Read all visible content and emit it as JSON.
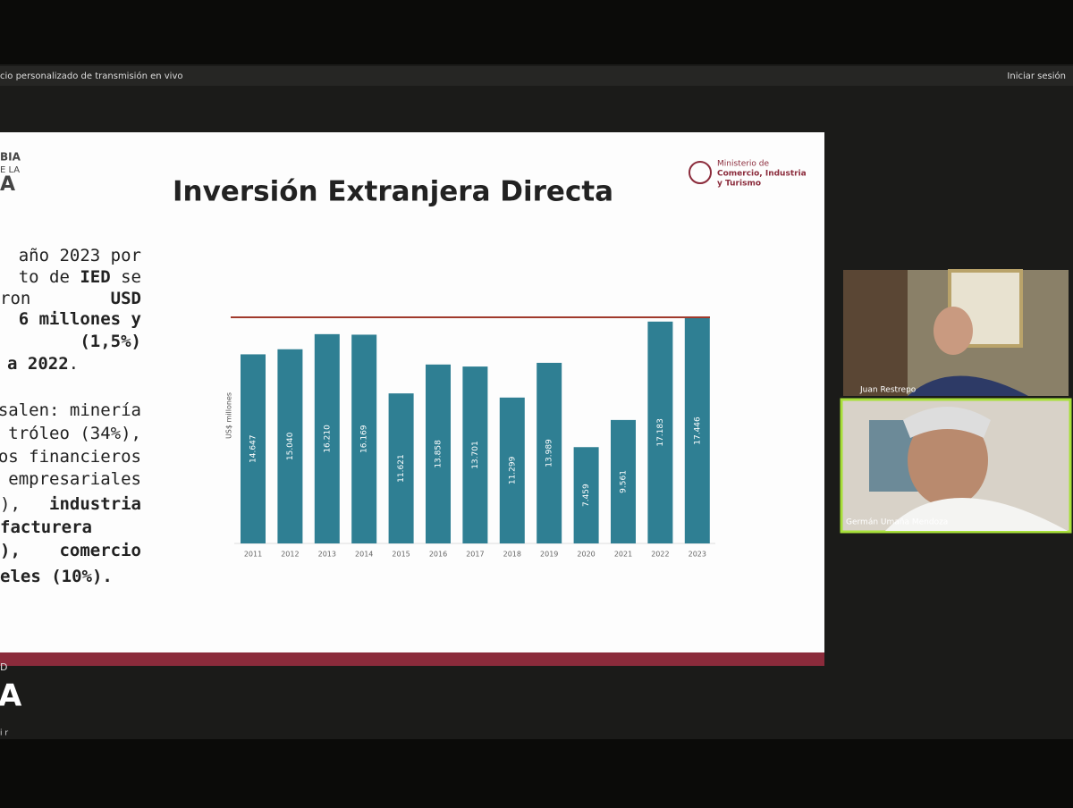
{
  "top_bar": {
    "left": "cio personalizado de transmisión en vivo",
    "right": "Iniciar sesión"
  },
  "slide": {
    "left_logo": [
      "BIA",
      "E LA",
      "A"
    ],
    "ministry_logo": [
      "Ministerio de",
      "Comercio, Industria",
      "y Turismo"
    ],
    "left_text": [
      [
        "año 2023 por"
      ],
      [
        "to de ",
        "IED",
        " se"
      ],
      [
        "ron",
        "USD"
      ],
      [
        "6 millones y"
      ],
      [
        "(1,5%)"
      ],
      [
        "a 2022",
        "."
      ],
      [
        "salen: minería"
      ],
      [
        "tróleo (34%),"
      ],
      [
        "ios financieros"
      ],
      [
        "empresariales"
      ],
      [
        "),",
        "industria"
      ],
      [
        "facturera"
      ],
      [
        "),",
        "comercio"
      ],
      [
        "eles (10%)."
      ]
    ]
  },
  "chart_data": {
    "type": "bar",
    "title": "Inversión Extranjera Directa",
    "y_label": "US$ millones",
    "categories": [
      "2011",
      "2012",
      "2013",
      "2014",
      "2015",
      "2016",
      "2017",
      "2018",
      "2019",
      "2020",
      "2021",
      "2022",
      "2023"
    ],
    "values": [
      14647,
      15040,
      16210,
      16169,
      11621,
      13858,
      13701,
      11299,
      13989,
      7459,
      9561,
      17183,
      17446
    ],
    "value_labels": [
      "14.647",
      "15.040",
      "16.210",
      "16.169",
      "11.621",
      "13.858",
      "13.701",
      "11.299",
      "13.989",
      "7.459",
      "9.561",
      "17.183",
      "17.446"
    ],
    "color": "#2f7f93"
  },
  "participants": [
    {
      "name": "Juan Restrepo"
    },
    {
      "name": "Germán Umaña Mendoza"
    }
  ],
  "bottom_logo": [
    "D",
    "A",
    "i r"
  ]
}
